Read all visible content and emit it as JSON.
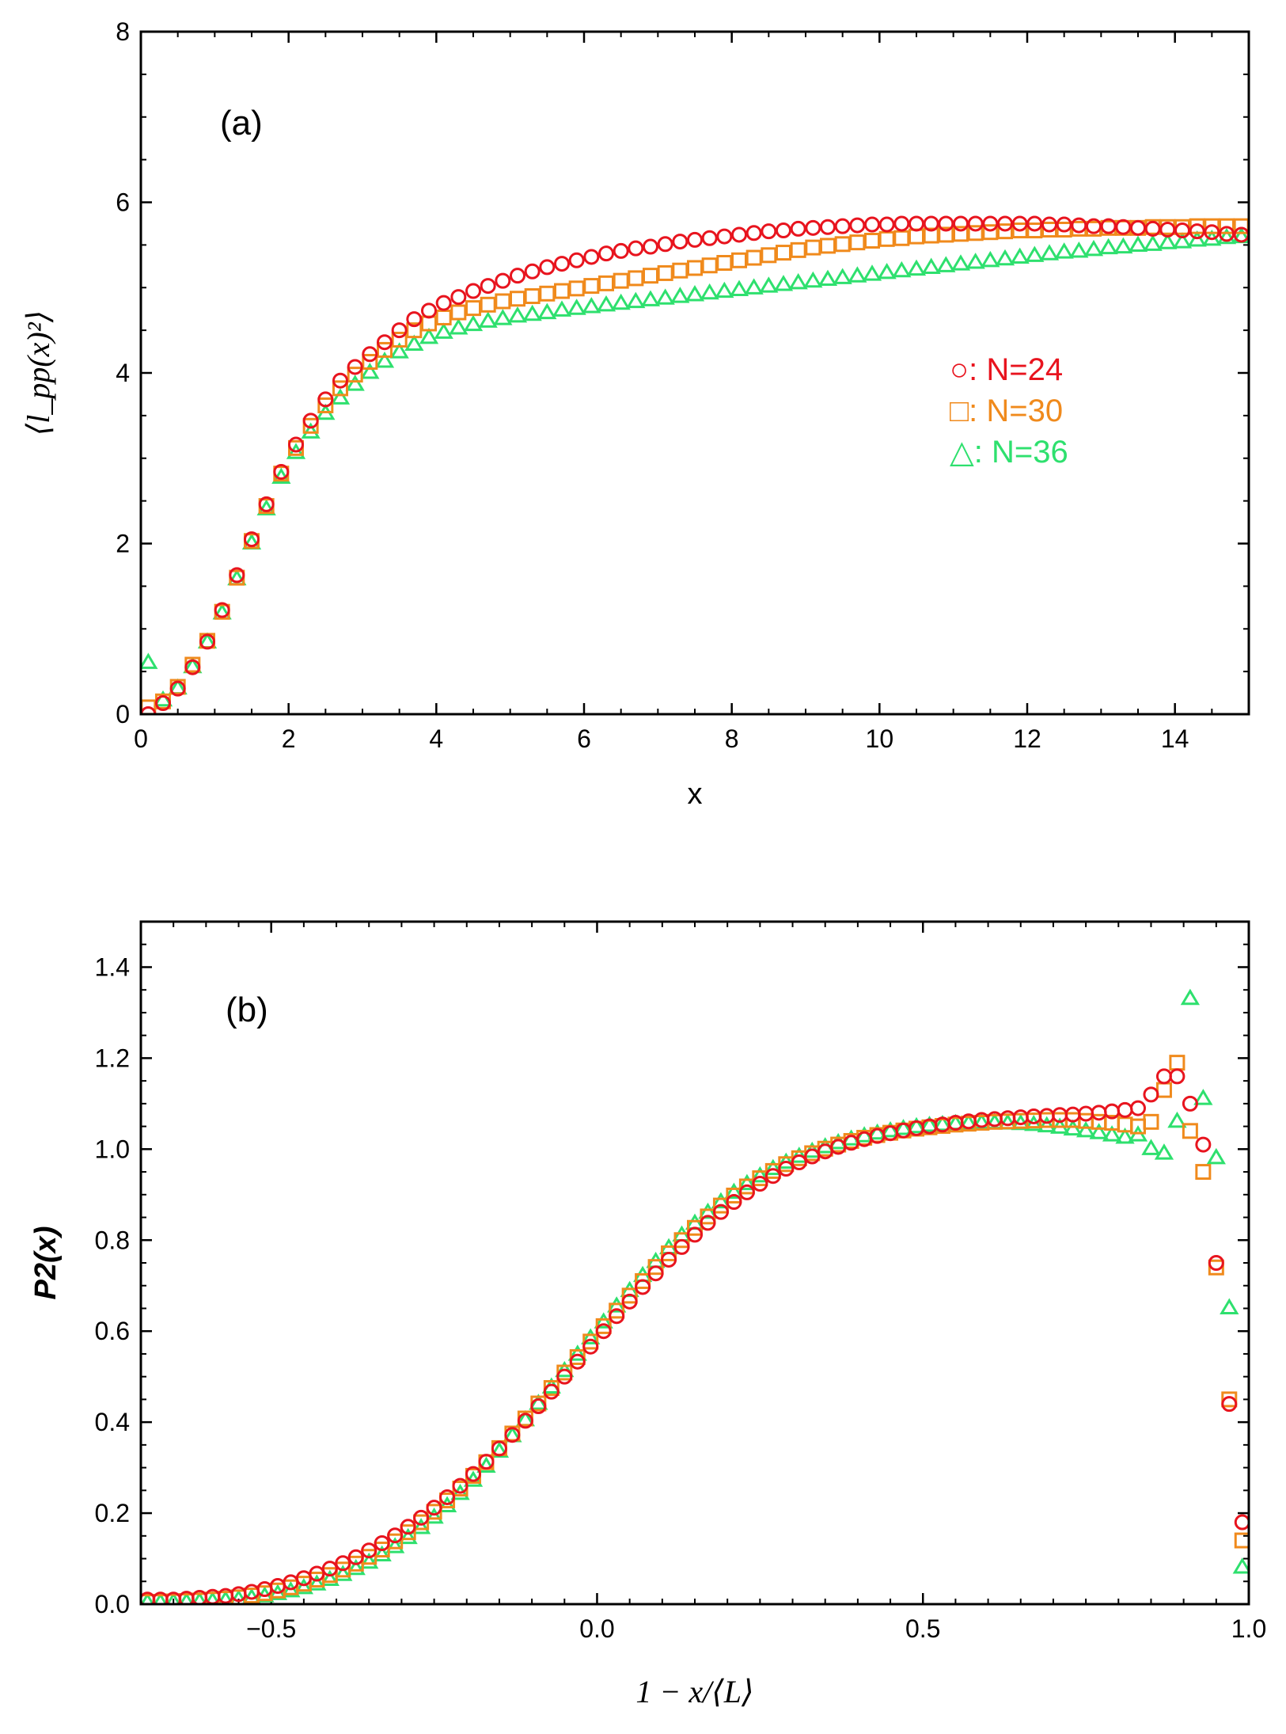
{
  "chart_data": [
    {
      "type": "scatter",
      "panel_label": "(a)",
      "xlabel": "x",
      "ylabel": "⟨l_pp(x)²⟩",
      "xlim": [
        0,
        15
      ],
      "ylim": [
        0,
        8
      ],
      "xticks": [
        0,
        2,
        4,
        6,
        8,
        10,
        12,
        14
      ],
      "yticks": [
        0,
        2,
        4,
        6,
        8
      ],
      "legend_position": "center-right",
      "series": [
        {
          "name": "N=24",
          "legend_label": "○: N=24",
          "marker": "circle",
          "color": "#e8141e",
          "x": [
            0.1,
            0.3,
            0.5,
            0.7,
            0.9,
            1.1,
            1.3,
            1.5,
            1.7,
            1.9,
            2.1,
            2.3,
            2.5,
            2.7,
            2.9,
            3.1,
            3.3,
            3.5,
            3.7,
            3.9,
            4.1,
            4.3,
            4.5,
            4.7,
            4.9,
            5.1,
            5.3,
            5.5,
            5.7,
            5.9,
            6.1,
            6.3,
            6.5,
            6.7,
            6.9,
            7.1,
            7.3,
            7.5,
            7.7,
            7.9,
            8.1,
            8.3,
            8.5,
            8.7,
            8.9,
            9.1,
            9.3,
            9.5,
            9.7,
            9.9,
            10.1,
            10.3,
            10.5,
            10.7,
            10.9,
            11.1,
            11.3,
            11.5,
            11.7,
            11.9,
            12.1,
            12.3,
            12.5,
            12.7,
            12.9,
            13.1,
            13.3,
            13.5,
            13.7,
            13.9,
            14.1,
            14.3,
            14.5,
            14.7,
            14.9
          ],
          "y": [
            0.0,
            0.13,
            0.3,
            0.55,
            0.85,
            1.22,
            1.63,
            2.05,
            2.46,
            2.84,
            3.16,
            3.44,
            3.69,
            3.91,
            4.07,
            4.22,
            4.36,
            4.5,
            4.63,
            4.73,
            4.82,
            4.89,
            4.96,
            5.02,
            5.08,
            5.14,
            5.19,
            5.24,
            5.28,
            5.32,
            5.36,
            5.4,
            5.43,
            5.46,
            5.48,
            5.51,
            5.54,
            5.56,
            5.58,
            5.6,
            5.62,
            5.64,
            5.66,
            5.67,
            5.69,
            5.7,
            5.71,
            5.72,
            5.73,
            5.74,
            5.74,
            5.75,
            5.75,
            5.75,
            5.75,
            5.75,
            5.75,
            5.75,
            5.75,
            5.75,
            5.75,
            5.74,
            5.74,
            5.73,
            5.72,
            5.72,
            5.71,
            5.7,
            5.69,
            5.68,
            5.67,
            5.66,
            5.65,
            5.63,
            5.62
          ]
        },
        {
          "name": "N=30",
          "legend_label": "□: N=30",
          "marker": "square",
          "color": "#f08a1c",
          "x": [
            0.1,
            0.3,
            0.5,
            0.7,
            0.9,
            1.1,
            1.3,
            1.5,
            1.7,
            1.9,
            2.1,
            2.3,
            2.5,
            2.7,
            2.9,
            3.1,
            3.3,
            3.5,
            3.7,
            3.9,
            4.1,
            4.3,
            4.5,
            4.7,
            4.9,
            5.1,
            5.3,
            5.5,
            5.7,
            5.9,
            6.1,
            6.3,
            6.5,
            6.7,
            6.9,
            7.1,
            7.3,
            7.5,
            7.7,
            7.9,
            8.1,
            8.3,
            8.5,
            8.7,
            8.9,
            9.1,
            9.3,
            9.5,
            9.7,
            9.9,
            10.1,
            10.3,
            10.5,
            10.7,
            10.9,
            11.1,
            11.3,
            11.5,
            11.7,
            11.9,
            12.1,
            12.3,
            12.5,
            12.7,
            12.9,
            13.1,
            13.3,
            13.5,
            13.7,
            13.9,
            14.1,
            14.3,
            14.5,
            14.7,
            14.9
          ],
          "y": [
            0.08,
            0.15,
            0.32,
            0.58,
            0.86,
            1.2,
            1.6,
            2.03,
            2.44,
            2.82,
            3.12,
            3.38,
            3.62,
            3.82,
            3.98,
            4.13,
            4.27,
            4.39,
            4.5,
            4.58,
            4.65,
            4.71,
            4.76,
            4.8,
            4.84,
            4.87,
            4.9,
            4.93,
            4.96,
            4.99,
            5.02,
            5.05,
            5.08,
            5.11,
            5.14,
            5.17,
            5.2,
            5.23,
            5.26,
            5.29,
            5.32,
            5.35,
            5.38,
            5.41,
            5.44,
            5.47,
            5.49,
            5.51,
            5.53,
            5.55,
            5.57,
            5.58,
            5.6,
            5.61,
            5.62,
            5.63,
            5.64,
            5.65,
            5.66,
            5.67,
            5.67,
            5.68,
            5.68,
            5.69,
            5.69,
            5.7,
            5.7,
            5.7,
            5.71,
            5.71,
            5.71,
            5.72,
            5.72,
            5.72,
            5.72
          ]
        },
        {
          "name": "N=36",
          "legend_label": "△: N=36",
          "marker": "triangle",
          "color": "#2ee06e",
          "x": [
            0.1,
            0.3,
            0.5,
            0.7,
            0.9,
            1.1,
            1.3,
            1.5,
            1.7,
            1.9,
            2.1,
            2.3,
            2.5,
            2.7,
            2.9,
            3.1,
            3.3,
            3.5,
            3.7,
            3.9,
            4.1,
            4.3,
            4.5,
            4.7,
            4.9,
            5.1,
            5.3,
            5.5,
            5.7,
            5.9,
            6.1,
            6.3,
            6.5,
            6.7,
            6.9,
            7.1,
            7.3,
            7.5,
            7.7,
            7.9,
            8.1,
            8.3,
            8.5,
            8.7,
            8.9,
            9.1,
            9.3,
            9.5,
            9.7,
            9.9,
            10.1,
            10.3,
            10.5,
            10.7,
            10.9,
            11.1,
            11.3,
            11.5,
            11.7,
            11.9,
            12.1,
            12.3,
            12.5,
            12.7,
            12.9,
            13.1,
            13.3,
            13.5,
            13.7,
            13.9,
            14.1,
            14.3,
            14.5,
            14.7,
            14.9
          ],
          "y": [
            0.6,
            0.16,
            0.3,
            0.55,
            0.84,
            1.18,
            1.58,
            2.0,
            2.4,
            2.77,
            3.06,
            3.3,
            3.52,
            3.7,
            3.86,
            4.0,
            4.13,
            4.24,
            4.33,
            4.41,
            4.47,
            4.52,
            4.56,
            4.6,
            4.63,
            4.66,
            4.68,
            4.7,
            4.73,
            4.75,
            4.77,
            4.79,
            4.81,
            4.83,
            4.85,
            4.87,
            4.89,
            4.91,
            4.93,
            4.95,
            4.97,
            4.99,
            5.01,
            5.03,
            5.05,
            5.07,
            5.09,
            5.11,
            5.13,
            5.15,
            5.17,
            5.19,
            5.21,
            5.23,
            5.25,
            5.27,
            5.29,
            5.31,
            5.33,
            5.35,
            5.37,
            5.39,
            5.41,
            5.42,
            5.44,
            5.46,
            5.47,
            5.49,
            5.5,
            5.52,
            5.53,
            5.55,
            5.56,
            5.58,
            5.59
          ]
        }
      ]
    },
    {
      "type": "scatter",
      "panel_label": "(b)",
      "xlabel": "1 − x/⟨L⟩",
      "ylabel": "P2(x)",
      "xlim": [
        -0.7,
        1.0
      ],
      "ylim": [
        0,
        1.5
      ],
      "xticks": [
        -0.5,
        0.0,
        0.5,
        1.0
      ],
      "yticks": [
        0.0,
        0.2,
        0.4,
        0.6,
        0.8,
        1.0,
        1.2,
        1.4
      ],
      "series": [
        {
          "name": "N=24",
          "marker": "circle",
          "color": "#e8141e",
          "x": [
            -0.69,
            -0.67,
            -0.65,
            -0.63,
            -0.61,
            -0.59,
            -0.57,
            -0.55,
            -0.53,
            -0.51,
            -0.49,
            -0.47,
            -0.45,
            -0.43,
            -0.41,
            -0.39,
            -0.37,
            -0.35,
            -0.33,
            -0.31,
            -0.29,
            -0.27,
            -0.25,
            -0.23,
            -0.21,
            -0.19,
            -0.17,
            -0.15,
            -0.13,
            -0.11,
            -0.09,
            -0.07,
            -0.05,
            -0.03,
            -0.01,
            0.01,
            0.03,
            0.05,
            0.07,
            0.09,
            0.11,
            0.13,
            0.15,
            0.17,
            0.19,
            0.21,
            0.23,
            0.25,
            0.27,
            0.29,
            0.31,
            0.33,
            0.35,
            0.37,
            0.39,
            0.41,
            0.43,
            0.45,
            0.47,
            0.49,
            0.51,
            0.53,
            0.55,
            0.57,
            0.59,
            0.61,
            0.63,
            0.65,
            0.67,
            0.69,
            0.71,
            0.73,
            0.75,
            0.77,
            0.79,
            0.81,
            0.83,
            0.85,
            0.87,
            0.89,
            0.91,
            0.93,
            0.95,
            0.97,
            0.99
          ],
          "y": [
            0.01,
            0.01,
            0.01,
            0.012,
            0.014,
            0.016,
            0.018,
            0.022,
            0.027,
            0.033,
            0.04,
            0.048,
            0.057,
            0.067,
            0.078,
            0.09,
            0.103,
            0.118,
            0.134,
            0.151,
            0.17,
            0.19,
            0.212,
            0.235,
            0.26,
            0.286,
            0.313,
            0.342,
            0.372,
            0.403,
            0.435,
            0.467,
            0.5,
            0.533,
            0.566,
            0.6,
            0.633,
            0.665,
            0.697,
            0.727,
            0.757,
            0.785,
            0.812,
            0.838,
            0.862,
            0.884,
            0.905,
            0.924,
            0.941,
            0.957,
            0.971,
            0.984,
            0.995,
            1.005,
            1.014,
            1.022,
            1.029,
            1.035,
            1.041,
            1.046,
            1.05,
            1.054,
            1.058,
            1.061,
            1.064,
            1.066,
            1.068,
            1.07,
            1.072,
            1.073,
            1.075,
            1.076,
            1.078,
            1.08,
            1.083,
            1.086,
            1.09,
            1.12,
            1.16,
            1.16,
            1.1,
            1.01,
            0.75,
            0.44,
            0.18
          ]
        },
        {
          "name": "N=30",
          "marker": "square",
          "color": "#f08a1c",
          "x": [
            -0.69,
            -0.67,
            -0.65,
            -0.63,
            -0.61,
            -0.59,
            -0.57,
            -0.55,
            -0.53,
            -0.51,
            -0.49,
            -0.47,
            -0.45,
            -0.43,
            -0.41,
            -0.39,
            -0.37,
            -0.35,
            -0.33,
            -0.31,
            -0.29,
            -0.27,
            -0.25,
            -0.23,
            -0.21,
            -0.19,
            -0.17,
            -0.15,
            -0.13,
            -0.11,
            -0.09,
            -0.07,
            -0.05,
            -0.03,
            -0.01,
            0.01,
            0.03,
            0.05,
            0.07,
            0.09,
            0.11,
            0.13,
            0.15,
            0.17,
            0.19,
            0.21,
            0.23,
            0.25,
            0.27,
            0.29,
            0.31,
            0.33,
            0.35,
            0.37,
            0.39,
            0.41,
            0.43,
            0.45,
            0.47,
            0.49,
            0.51,
            0.53,
            0.55,
            0.57,
            0.59,
            0.61,
            0.63,
            0.65,
            0.67,
            0.69,
            0.71,
            0.73,
            0.75,
            0.77,
            0.79,
            0.81,
            0.83,
            0.85,
            0.87,
            0.89,
            0.91,
            0.93,
            0.95,
            0.97,
            0.99
          ],
          "y": [
            0.005,
            0.005,
            0.006,
            0.007,
            0.008,
            0.01,
            0.012,
            0.015,
            0.019,
            0.024,
            0.03,
            0.037,
            0.045,
            0.054,
            0.064,
            0.076,
            0.089,
            0.104,
            0.12,
            0.138,
            0.158,
            0.18,
            0.203,
            0.228,
            0.254,
            0.282,
            0.312,
            0.343,
            0.375,
            0.408,
            0.441,
            0.475,
            0.509,
            0.543,
            0.577,
            0.611,
            0.645,
            0.678,
            0.71,
            0.741,
            0.771,
            0.8,
            0.827,
            0.852,
            0.876,
            0.898,
            0.918,
            0.936,
            0.952,
            0.967,
            0.98,
            0.991,
            1.001,
            1.01,
            1.018,
            1.025,
            1.031,
            1.036,
            1.041,
            1.045,
            1.048,
            1.051,
            1.054,
            1.056,
            1.058,
            1.06,
            1.061,
            1.062,
            1.063,
            1.064,
            1.064,
            1.064,
            1.062,
            1.06,
            1.058,
            1.054,
            1.05,
            1.06,
            1.13,
            1.19,
            1.04,
            0.95,
            0.74,
            0.45,
            0.14
          ]
        },
        {
          "name": "N=36",
          "marker": "triangle",
          "color": "#2ee06e",
          "x": [
            -0.69,
            -0.67,
            -0.65,
            -0.63,
            -0.61,
            -0.59,
            -0.57,
            -0.55,
            -0.53,
            -0.51,
            -0.49,
            -0.47,
            -0.45,
            -0.43,
            -0.41,
            -0.39,
            -0.37,
            -0.35,
            -0.33,
            -0.31,
            -0.29,
            -0.27,
            -0.25,
            -0.23,
            -0.21,
            -0.19,
            -0.17,
            -0.15,
            -0.13,
            -0.11,
            -0.09,
            -0.07,
            -0.05,
            -0.03,
            -0.01,
            0.01,
            0.03,
            0.05,
            0.07,
            0.09,
            0.11,
            0.13,
            0.15,
            0.17,
            0.19,
            0.21,
            0.23,
            0.25,
            0.27,
            0.29,
            0.31,
            0.33,
            0.35,
            0.37,
            0.39,
            0.41,
            0.43,
            0.45,
            0.47,
            0.49,
            0.51,
            0.53,
            0.55,
            0.57,
            0.59,
            0.61,
            0.63,
            0.65,
            0.67,
            0.69,
            0.71,
            0.73,
            0.75,
            0.77,
            0.79,
            0.81,
            0.83,
            0.85,
            0.87,
            0.89,
            0.91,
            0.93,
            0.95,
            0.97,
            0.99
          ],
          "y": [
            0.003,
            0.003,
            0.004,
            0.004,
            0.005,
            0.006,
            0.008,
            0.01,
            0.013,
            0.017,
            0.022,
            0.028,
            0.035,
            0.043,
            0.053,
            0.064,
            0.077,
            0.091,
            0.107,
            0.125,
            0.145,
            0.167,
            0.19,
            0.215,
            0.242,
            0.271,
            0.302,
            0.335,
            0.369,
            0.404,
            0.44,
            0.476,
            0.512,
            0.548,
            0.584,
            0.619,
            0.654,
            0.688,
            0.721,
            0.752,
            0.782,
            0.81,
            0.836,
            0.86,
            0.883,
            0.904,
            0.923,
            0.94,
            0.956,
            0.97,
            0.983,
            0.994,
            1.004,
            1.013,
            1.021,
            1.028,
            1.034,
            1.039,
            1.044,
            1.048,
            1.051,
            1.053,
            1.055,
            1.056,
            1.057,
            1.057,
            1.056,
            1.055,
            1.053,
            1.05,
            1.047,
            1.043,
            1.039,
            1.035,
            1.03,
            1.025,
            1.03,
            1.0,
            0.99,
            1.06,
            1.33,
            1.11,
            0.98,
            0.65,
            0.08
          ]
        }
      ]
    }
  ]
}
